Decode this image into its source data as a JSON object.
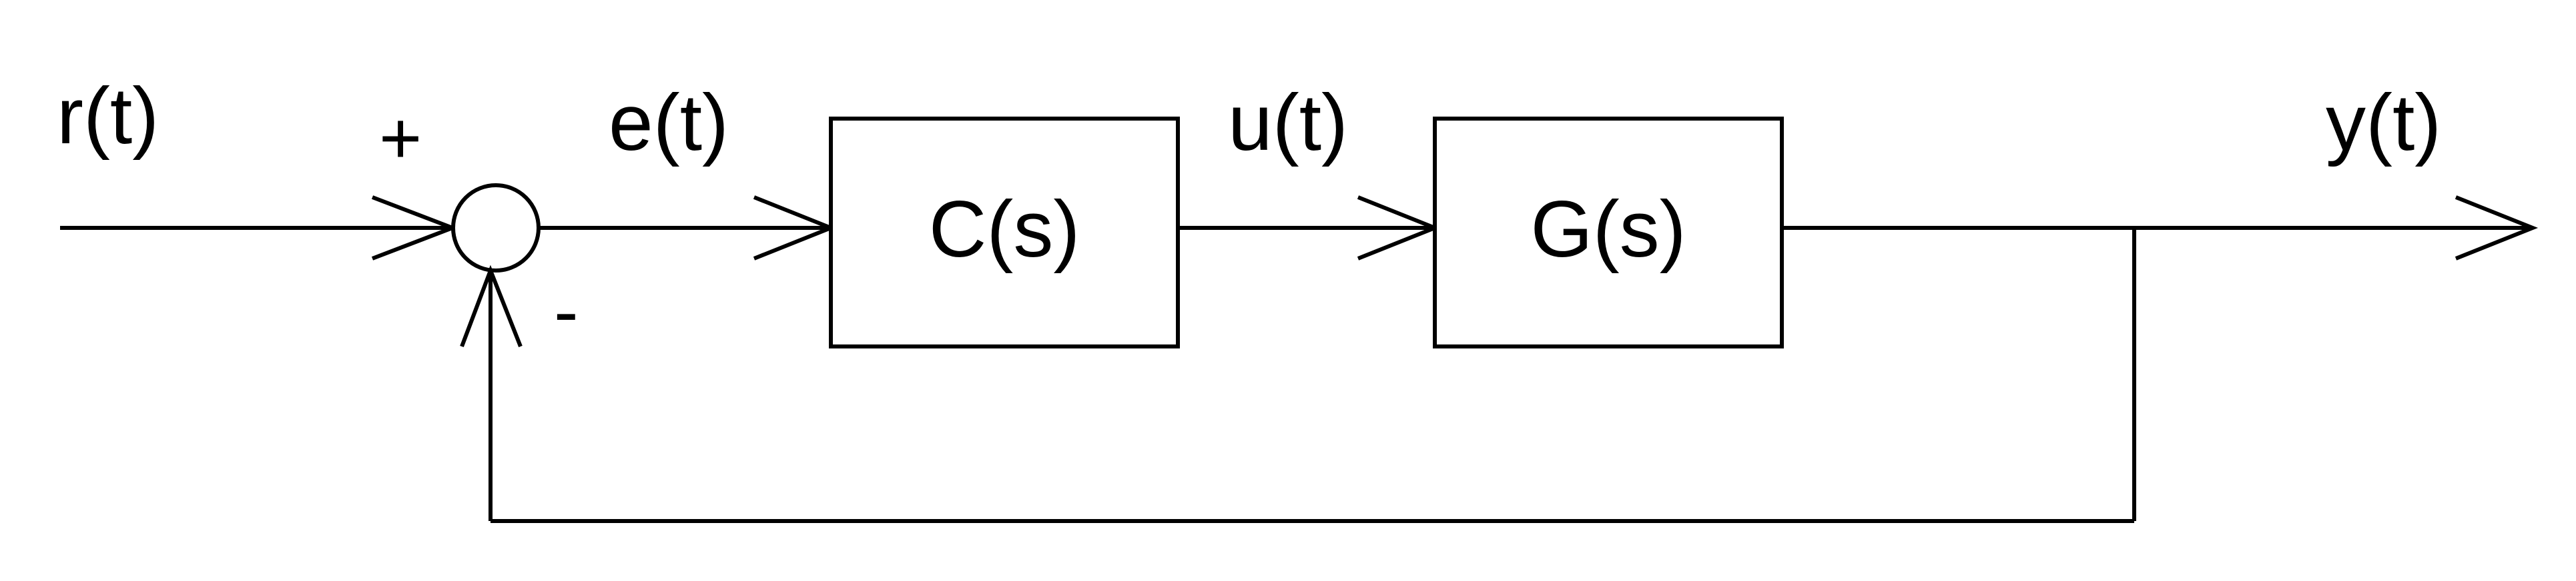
{
  "signals": {
    "reference": "r(t)",
    "error": "e(t)",
    "control": "u(t)",
    "output": "y(t)"
  },
  "blocks": {
    "controller": "C(s)",
    "plant": "G(s)"
  },
  "summing_junction": {
    "plus_sign": "+",
    "minus_sign": "-"
  },
  "colors": {
    "stroke": "#000000",
    "background": "#ffffff"
  }
}
